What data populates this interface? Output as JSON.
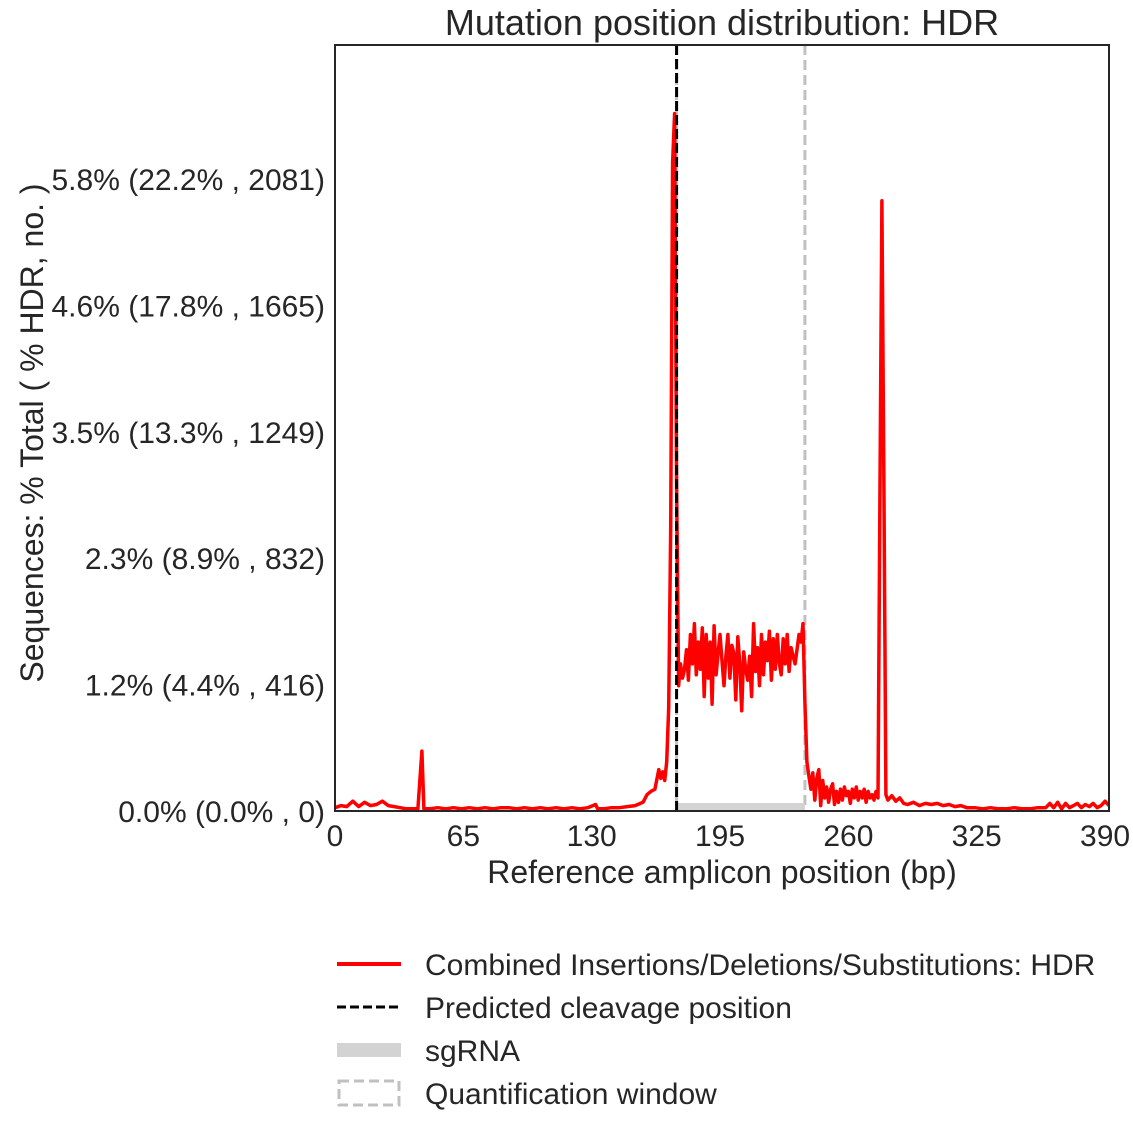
{
  "chart_data": {
    "type": "line",
    "title": "Mutation position distribution: HDR",
    "xlabel": "Reference amplicon position (bp)",
    "ylabel": "Sequences: % Total ( % HDR, no. )",
    "xlim": [
      0,
      392
    ],
    "ylim": [
      0,
      7.03
    ],
    "grid": false,
    "x_ticks": [
      {
        "value": 0,
        "label": "0"
      },
      {
        "value": 65,
        "label": "65"
      },
      {
        "value": 130,
        "label": "130"
      },
      {
        "value": 195,
        "label": "195"
      },
      {
        "value": 260,
        "label": "260"
      },
      {
        "value": 325,
        "label": "325"
      },
      {
        "value": 390,
        "label": "390"
      }
    ],
    "y_ticks": [
      {
        "value": 0.0,
        "label": "0.0% (0.0% , 0)"
      },
      {
        "value": 1.16,
        "label": "1.2% (4.4% , 416)"
      },
      {
        "value": 2.32,
        "label": "2.3% (8.9% , 832)"
      },
      {
        "value": 3.48,
        "label": "3.5% (13.3% , 1249)"
      },
      {
        "value": 4.64,
        "label": "4.6% (17.8% , 1665)"
      },
      {
        "value": 5.8,
        "label": "5.8% (22.2% , 2081)"
      }
    ],
    "series": [
      {
        "name": "Combined Insertions/Deletions/Substitutions: HDR",
        "color": "#ff0000",
        "points": [
          [
            0,
            0.03
          ],
          [
            3,
            0.05
          ],
          [
            6,
            0.04
          ],
          [
            9,
            0.09
          ],
          [
            12,
            0.04
          ],
          [
            15,
            0.08
          ],
          [
            18,
            0.05
          ],
          [
            21,
            0.06
          ],
          [
            24,
            0.09
          ],
          [
            27,
            0.05
          ],
          [
            30,
            0.04
          ],
          [
            33,
            0.03
          ],
          [
            36,
            0.02
          ],
          [
            39,
            0.02
          ],
          [
            42,
            0.02
          ],
          [
            44,
            0.55
          ],
          [
            45,
            0.02
          ],
          [
            48,
            0.02
          ],
          [
            52,
            0.03
          ],
          [
            56,
            0.02
          ],
          [
            60,
            0.03
          ],
          [
            64,
            0.02
          ],
          [
            68,
            0.03
          ],
          [
            72,
            0.02
          ],
          [
            76,
            0.03
          ],
          [
            80,
            0.02
          ],
          [
            84,
            0.03
          ],
          [
            88,
            0.03
          ],
          [
            92,
            0.02
          ],
          [
            96,
            0.03
          ],
          [
            100,
            0.02
          ],
          [
            104,
            0.03
          ],
          [
            108,
            0.02
          ],
          [
            112,
            0.03
          ],
          [
            116,
            0.02
          ],
          [
            120,
            0.03
          ],
          [
            124,
            0.02
          ],
          [
            128,
            0.03
          ],
          [
            132,
            0.06
          ],
          [
            133,
            0.02
          ],
          [
            136,
            0.02
          ],
          [
            140,
            0.03
          ],
          [
            144,
            0.03
          ],
          [
            148,
            0.04
          ],
          [
            152,
            0.05
          ],
          [
            156,
            0.08
          ],
          [
            158,
            0.15
          ],
          [
            160,
            0.18
          ],
          [
            162,
            0.2
          ],
          [
            164,
            0.38
          ],
          [
            165,
            0.3
          ],
          [
            166,
            0.36
          ],
          [
            167,
            0.28
          ],
          [
            168,
            0.45
          ],
          [
            169,
            0.95
          ],
          [
            170,
            2.6
          ],
          [
            171,
            5.95
          ],
          [
            172,
            6.4
          ],
          [
            173,
            3.0
          ],
          [
            174,
            1.15
          ],
          [
            175,
            1.35
          ],
          [
            176,
            1.22
          ],
          [
            177,
            1.3
          ],
          [
            178,
            1.48
          ],
          [
            179,
            1.2
          ],
          [
            180,
            1.62
          ],
          [
            181,
            1.35
          ],
          [
            182,
            1.72
          ],
          [
            183,
            1.25
          ],
          [
            184,
            1.55
          ],
          [
            185,
            1.3
          ],
          [
            186,
            1.68
          ],
          [
            187,
            1.05
          ],
          [
            188,
            1.62
          ],
          [
            189,
            1.22
          ],
          [
            190,
            1.55
          ],
          [
            191,
            0.98
          ],
          [
            192,
            1.7
          ],
          [
            193,
            1.25
          ],
          [
            194,
            1.45
          ],
          [
            195,
            1.62
          ],
          [
            196,
            1.38
          ],
          [
            197,
            1.15
          ],
          [
            198,
            1.42
          ],
          [
            199,
            1.62
          ],
          [
            200,
            1.22
          ],
          [
            201,
            1.52
          ],
          [
            202,
            1.45
          ],
          [
            203,
            1.02
          ],
          [
            204,
            1.6
          ],
          [
            205,
            1.35
          ],
          [
            206,
            0.92
          ],
          [
            207,
            1.46
          ],
          [
            208,
            1.3
          ],
          [
            209,
            1.2
          ],
          [
            210,
            1.42
          ],
          [
            211,
            1.05
          ],
          [
            212,
            1.72
          ],
          [
            213,
            1.28
          ],
          [
            214,
            1.5
          ],
          [
            215,
            1.15
          ],
          [
            216,
            1.62
          ],
          [
            217,
            1.25
          ],
          [
            218,
            1.55
          ],
          [
            219,
            1.38
          ],
          [
            220,
            1.65
          ],
          [
            221,
            1.2
          ],
          [
            222,
            1.58
          ],
          [
            223,
            1.3
          ],
          [
            224,
            1.62
          ],
          [
            225,
            1.36
          ],
          [
            226,
            1.25
          ],
          [
            227,
            1.58
          ],
          [
            228,
            1.35
          ],
          [
            229,
            1.62
          ],
          [
            230,
            1.28
          ],
          [
            231,
            1.5
          ],
          [
            232,
            1.42
          ],
          [
            233,
            1.35
          ],
          [
            234,
            1.48
          ],
          [
            235,
            1.62
          ],
          [
            236,
            1.55
          ],
          [
            237,
            1.72
          ],
          [
            238,
            1.0
          ],
          [
            239,
            0.45
          ],
          [
            240,
            0.32
          ],
          [
            241,
            0.2
          ],
          [
            242,
            0.35
          ],
          [
            243,
            0.1
          ],
          [
            244,
            0.3
          ],
          [
            245,
            0.38
          ],
          [
            246,
            0.05
          ],
          [
            247,
            0.28
          ],
          [
            248,
            0.12
          ],
          [
            249,
            0.22
          ],
          [
            250,
            0.08
          ],
          [
            251,
            0.2
          ],
          [
            252,
            0.25
          ],
          [
            253,
            0.06
          ],
          [
            254,
            0.18
          ],
          [
            255,
            0.08
          ],
          [
            256,
            0.2
          ],
          [
            257,
            0.1
          ],
          [
            258,
            0.22
          ],
          [
            259,
            0.14
          ],
          [
            260,
            0.18
          ],
          [
            261,
            0.07
          ],
          [
            262,
            0.2
          ],
          [
            263,
            0.12
          ],
          [
            264,
            0.22
          ],
          [
            265,
            0.1
          ],
          [
            266,
            0.18
          ],
          [
            267,
            0.12
          ],
          [
            268,
            0.2
          ],
          [
            269,
            0.08
          ],
          [
            270,
            0.18
          ],
          [
            271,
            0.12
          ],
          [
            272,
            0.15
          ],
          [
            273,
            0.1
          ],
          [
            274,
            0.18
          ],
          [
            275,
            0.12
          ],
          [
            276,
            3.0
          ],
          [
            277,
            5.6
          ],
          [
            278,
            3.0
          ],
          [
            279,
            0.15
          ],
          [
            280,
            0.1
          ],
          [
            282,
            0.14
          ],
          [
            284,
            0.09
          ],
          [
            286,
            0.12
          ],
          [
            288,
            0.07
          ],
          [
            290,
            0.06
          ],
          [
            293,
            0.08
          ],
          [
            296,
            0.05
          ],
          [
            299,
            0.07
          ],
          [
            302,
            0.06
          ],
          [
            305,
            0.07
          ],
          [
            308,
            0.05
          ],
          [
            311,
            0.06
          ],
          [
            314,
            0.04
          ],
          [
            317,
            0.05
          ],
          [
            320,
            0.03
          ],
          [
            324,
            0.03
          ],
          [
            328,
            0.02
          ],
          [
            332,
            0.03
          ],
          [
            336,
            0.02
          ],
          [
            340,
            0.02
          ],
          [
            344,
            0.03
          ],
          [
            348,
            0.02
          ],
          [
            352,
            0.02
          ],
          [
            356,
            0.03
          ],
          [
            360,
            0.03
          ],
          [
            362,
            0.07
          ],
          [
            364,
            0.03
          ],
          [
            366,
            0.08
          ],
          [
            368,
            0.02
          ],
          [
            370,
            0.07
          ],
          [
            372,
            0.03
          ],
          [
            374,
            0.05
          ],
          [
            376,
            0.07
          ],
          [
            378,
            0.03
          ],
          [
            380,
            0.06
          ],
          [
            382,
            0.04
          ],
          [
            384,
            0.07
          ],
          [
            386,
            0.03
          ],
          [
            388,
            0.05
          ],
          [
            390,
            0.09
          ],
          [
            392,
            0.05
          ]
        ]
      }
    ],
    "cleavage_position": {
      "name": "Predicted cleavage position",
      "x": 173,
      "color": "#000000"
    },
    "sgrna": {
      "name": "sgRNA",
      "x_range": [
        173,
        238
      ],
      "color": "#d3d3d3"
    },
    "quantification_window": {
      "name": "Quantification window",
      "x_range": [
        173,
        238
      ],
      "color": "#c0c0c0"
    },
    "legend": {
      "placement": "below",
      "entries": [
        {
          "label": "Combined Insertions/Deletions/Substitutions: HDR",
          "style": "solid-line",
          "color": "#ff0000"
        },
        {
          "label": "Predicted cleavage position",
          "style": "dashed-line",
          "color": "#000000"
        },
        {
          "label": "sgRNA",
          "style": "thick-bar",
          "color": "#d3d3d3"
        },
        {
          "label": "Quantification window",
          "style": "dashed-box",
          "color": "#c0c0c0"
        }
      ]
    }
  }
}
